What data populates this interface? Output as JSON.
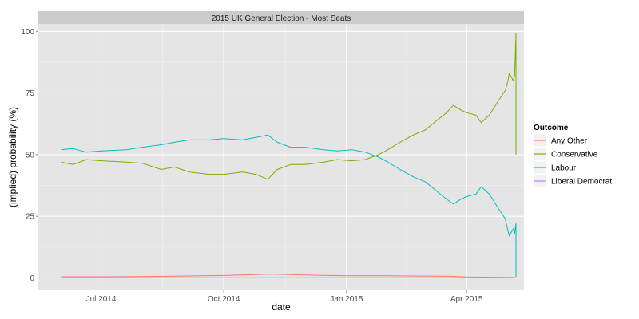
{
  "chart_data": {
    "type": "line",
    "title": "2015 UK General Election - Most Seats",
    "xlabel": "date",
    "ylabel": "(implied) probability (%)",
    "xlim": [
      "2014-05-15",
      "2015-05-14"
    ],
    "ylim": [
      -5,
      103
    ],
    "x_ticks": [
      {
        "date": "2014-07-01",
        "label": "Jul 2014"
      },
      {
        "date": "2014-10-01",
        "label": "Oct 2014"
      },
      {
        "date": "2015-01-01",
        "label": "Jan 2015"
      },
      {
        "date": "2015-04-01",
        "label": "Apr 2015"
      }
    ],
    "y_ticks": [
      0,
      25,
      50,
      75,
      100
    ],
    "grid": true,
    "legend": {
      "title": "Outcome",
      "position": "right"
    },
    "series": [
      {
        "name": "Any Other",
        "color": "#F8766D",
        "points": [
          [
            "2014-06-01",
            0.5
          ],
          [
            "2014-07-01",
            0.5
          ],
          [
            "2014-08-01",
            0.6
          ],
          [
            "2014-09-01",
            0.8
          ],
          [
            "2014-10-01",
            1.0
          ],
          [
            "2014-10-20",
            1.3
          ],
          [
            "2014-11-05",
            1.6
          ],
          [
            "2014-11-20",
            1.4
          ],
          [
            "2014-12-10",
            1.1
          ],
          [
            "2015-01-01",
            0.9
          ],
          [
            "2015-02-01",
            0.9
          ],
          [
            "2015-03-01",
            0.8
          ],
          [
            "2015-03-20",
            0.7
          ],
          [
            "2015-04-01",
            0.4
          ],
          [
            "2015-04-20",
            0.3
          ],
          [
            "2015-05-07",
            0.2
          ]
        ]
      },
      {
        "name": "Conservative",
        "color": "#7CAE00",
        "points": [
          [
            "2014-06-01",
            47
          ],
          [
            "2014-06-10",
            46
          ],
          [
            "2014-06-20",
            48
          ],
          [
            "2014-07-01",
            47.5
          ],
          [
            "2014-07-20",
            47
          ],
          [
            "2014-08-01",
            46.5
          ],
          [
            "2014-08-15",
            44
          ],
          [
            "2014-08-25",
            45
          ],
          [
            "2014-09-05",
            43
          ],
          [
            "2014-09-20",
            42
          ],
          [
            "2014-10-01",
            42
          ],
          [
            "2014-10-15",
            43
          ],
          [
            "2014-10-25",
            42
          ],
          [
            "2014-11-03",
            40
          ],
          [
            "2014-11-10",
            44
          ],
          [
            "2014-11-20",
            46
          ],
          [
            "2014-12-01",
            46
          ],
          [
            "2014-12-15",
            47
          ],
          [
            "2014-12-25",
            48
          ],
          [
            "2015-01-05",
            47.5
          ],
          [
            "2015-01-15",
            48
          ],
          [
            "2015-01-25",
            50
          ],
          [
            "2015-02-01",
            52
          ],
          [
            "2015-02-10",
            55
          ],
          [
            "2015-02-20",
            58
          ],
          [
            "2015-03-01",
            60
          ],
          [
            "2015-03-10",
            64
          ],
          [
            "2015-03-17",
            67
          ],
          [
            "2015-03-22",
            70
          ],
          [
            "2015-03-28",
            68
          ],
          [
            "2015-04-01",
            67
          ],
          [
            "2015-04-08",
            66
          ],
          [
            "2015-04-12",
            63
          ],
          [
            "2015-04-18",
            66
          ],
          [
            "2015-04-25",
            72
          ],
          [
            "2015-04-30",
            76
          ],
          [
            "2015-05-02",
            80
          ],
          [
            "2015-05-03",
            83
          ],
          [
            "2015-05-04",
            82
          ],
          [
            "2015-05-05",
            81
          ],
          [
            "2015-05-06",
            80
          ],
          [
            "2015-05-07",
            82
          ],
          [
            "2015-05-08",
            99
          ],
          [
            "2015-05-08",
            50
          ]
        ]
      },
      {
        "name": "Labour",
        "color": "#00BFC4",
        "points": [
          [
            "2014-06-01",
            52
          ],
          [
            "2014-06-10",
            52.5
          ],
          [
            "2014-06-20",
            51
          ],
          [
            "2014-07-01",
            51.5
          ],
          [
            "2014-07-20",
            52
          ],
          [
            "2014-08-01",
            53
          ],
          [
            "2014-08-15",
            54
          ],
          [
            "2014-08-25",
            55
          ],
          [
            "2014-09-05",
            56
          ],
          [
            "2014-09-20",
            56
          ],
          [
            "2014-10-01",
            56.5
          ],
          [
            "2014-10-15",
            56
          ],
          [
            "2014-10-25",
            57
          ],
          [
            "2014-11-03",
            58
          ],
          [
            "2014-11-10",
            55
          ],
          [
            "2014-11-20",
            53
          ],
          [
            "2014-12-01",
            53
          ],
          [
            "2014-12-15",
            52
          ],
          [
            "2014-12-25",
            51.5
          ],
          [
            "2015-01-05",
            52
          ],
          [
            "2015-01-15",
            51
          ],
          [
            "2015-01-25",
            49
          ],
          [
            "2015-02-01",
            47
          ],
          [
            "2015-02-10",
            44
          ],
          [
            "2015-02-20",
            41
          ],
          [
            "2015-03-01",
            39
          ],
          [
            "2015-03-10",
            35
          ],
          [
            "2015-03-17",
            32
          ],
          [
            "2015-03-22",
            30
          ],
          [
            "2015-03-28",
            32
          ],
          [
            "2015-04-01",
            33
          ],
          [
            "2015-04-08",
            34
          ],
          [
            "2015-04-12",
            37
          ],
          [
            "2015-04-18",
            34
          ],
          [
            "2015-04-25",
            28
          ],
          [
            "2015-04-30",
            24
          ],
          [
            "2015-05-02",
            19
          ],
          [
            "2015-05-03",
            17
          ],
          [
            "2015-05-04",
            18
          ],
          [
            "2015-05-05",
            19
          ],
          [
            "2015-05-06",
            20
          ],
          [
            "2015-05-07",
            18
          ],
          [
            "2015-05-08",
            22
          ],
          [
            "2015-05-08",
            0.5
          ]
        ]
      },
      {
        "name": "Liberal Democrat",
        "color": "#C77CFF",
        "points": [
          [
            "2014-06-01",
            0.1
          ],
          [
            "2014-09-01",
            0.1
          ],
          [
            "2014-12-01",
            0.1
          ],
          [
            "2015-03-01",
            0.1
          ],
          [
            "2015-05-08",
            0.1
          ]
        ]
      }
    ]
  }
}
